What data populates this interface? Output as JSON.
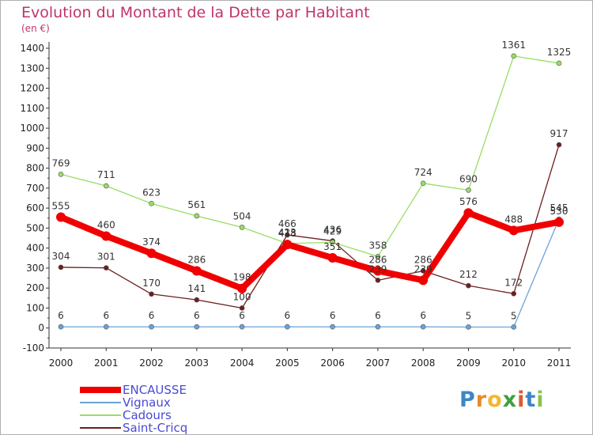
{
  "title": "Evolution du Montant de la Dette par Habitant",
  "unit_label": "(en €)",
  "logo": {
    "text": "Proxiti",
    "letters": [
      "P",
      "r",
      "o",
      "x",
      "i",
      "t",
      "i"
    ],
    "colors": [
      "#3d86c6",
      "#e98a2a",
      "#f2b731",
      "#3ea03e",
      "#e05a2a",
      "#3d86c6",
      "#8cc152"
    ]
  },
  "chart_data": {
    "type": "line",
    "title": "Evolution du Montant de la Dette par Habitant",
    "ylabel": "(en €)",
    "xlabel": "",
    "categories": [
      "2000",
      "2001",
      "2002",
      "2003",
      "2004",
      "2005",
      "2006",
      "2007",
      "2008",
      "2009",
      "2010",
      "2011"
    ],
    "ylim": [
      -100,
      1400
    ],
    "yticks": [
      -100,
      0,
      100,
      200,
      300,
      400,
      500,
      600,
      700,
      800,
      900,
      1000,
      1100,
      1200,
      1300,
      1400
    ],
    "grid": false,
    "legend": "bottom-left",
    "series": [
      {
        "name": "Saint-Cricq",
        "color": "#6e1e1e",
        "values": [
          304,
          301,
          170,
          141,
          100,
          466,
          436,
          239,
          286,
          212,
          172,
          917
        ]
      },
      {
        "name": "Cadours",
        "color": "#99dd66",
        "values": [
          769,
          711,
          623,
          561,
          504,
          423,
          429,
          358,
          724,
          690,
          1361,
          1325
        ]
      },
      {
        "name": "Vignaux",
        "color": "#6aa3d6",
        "values": [
          6,
          6,
          6,
          6,
          6,
          6,
          6,
          6,
          6,
          5,
          5,
          545
        ]
      },
      {
        "name": "ENCAUSSE",
        "color": "#f00000",
        "values": [
          555,
          460,
          374,
          286,
          198,
          418,
          351,
          286,
          239,
          576,
          488,
          530
        ]
      }
    ]
  }
}
